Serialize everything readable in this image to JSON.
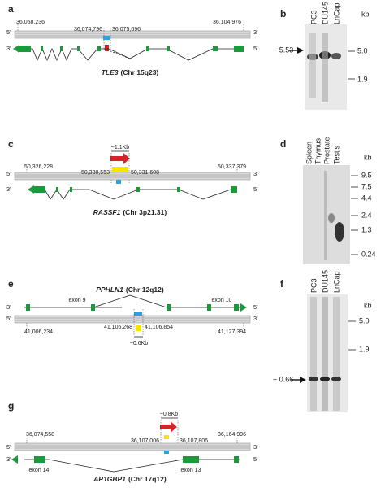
{
  "panels": [
    {
      "label": "a",
      "strands": [
        "5'",
        "3'",
        "3'",
        "5'"
      ],
      "coordinates": [
        "36,058,236",
        "36,074,796",
        "36,075,096",
        "36,104,976"
      ],
      "gene": "TLE3",
      "locus": "(Chr 15q23)"
    },
    {
      "label": "b",
      "lanes": [
        "PC3",
        "DU145",
        "LnCap"
      ],
      "unit": "kb",
      "markers": [
        "5.0",
        "1.9"
      ],
      "band": "~ 5.53"
    },
    {
      "label": "c",
      "fragment": "~1.1Kb",
      "strands": [
        "5'",
        "3'",
        "3'",
        "5'"
      ],
      "coordinates": [
        "50,326,228",
        "50,330,553",
        "50,331,608",
        "50,337,379"
      ],
      "gene": "RASSF1",
      "locus": "(Chr 3p21.31)"
    },
    {
      "label": "d",
      "lanes": [
        "Spleen",
        "Thymus",
        "Prostate",
        "Testis"
      ],
      "unit": "kb",
      "markers": [
        "9.5",
        "7.5",
        "4.4",
        "2.4",
        "1.3",
        "0.24"
      ]
    },
    {
      "label": "e",
      "gene": "PPHLN1",
      "locus": "(Chr 12q12)",
      "exons": [
        "exon 9",
        "exon 10"
      ],
      "strands": [
        "5'",
        "3'",
        "3'",
        "5'"
      ],
      "coordinates": [
        "41,006,234",
        "41,106,268",
        "41,106,854",
        "41,127,394"
      ],
      "fragment": "~0.6Kb"
    },
    {
      "label": "f",
      "lanes": [
        "PC3",
        "DU145",
        "LnCap"
      ],
      "unit": "kb",
      "markers": [
        "5.0",
        "1.9"
      ],
      "band": "~ 0.66"
    },
    {
      "label": "g",
      "fragment": "~0.8Kb",
      "coordinates": [
        "36,074,558",
        "36,107,006",
        "36,107,806",
        "36,164,996"
      ],
      "strands": [
        "5'",
        "3'",
        "3'",
        "5'"
      ],
      "exons": [
        "exon 14",
        "exon 13"
      ],
      "gene": "AP1GBP1",
      "locus": "(Chr 17q12)"
    }
  ]
}
